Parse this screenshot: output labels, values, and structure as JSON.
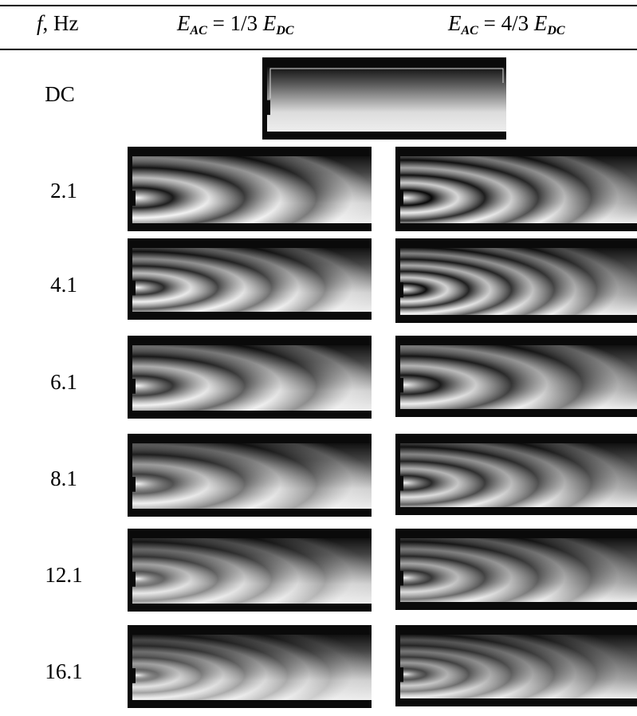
{
  "header": {
    "col_f": {
      "var": "f",
      "sep": ",",
      "unit": "Hz"
    },
    "col_left": {
      "E": "E",
      "sub_ac": "AC",
      "eq": " = 1/3 ",
      "E2": "E",
      "sub_dc": "DC"
    },
    "col_right": {
      "E": "E",
      "sub_ac": "AC",
      "eq": " = 4/3 ",
      "E2": "E",
      "sub_dc": "DC"
    }
  },
  "rows": [
    {
      "label": "DC"
    },
    {
      "label": "2.1",
      "rings_left": 3,
      "rings_right": 4
    },
    {
      "label": "4.1",
      "rings_left": 4,
      "rings_right": 5
    },
    {
      "label": "6.1",
      "rings_left": 3,
      "rings_right": 3
    },
    {
      "label": "8.1",
      "rings_left": 3,
      "rings_right": 4
    },
    {
      "label": "12.1",
      "rings_left": 4,
      "rings_right": 4
    },
    {
      "label": "16.1",
      "rings_left": 5,
      "rings_right": 5
    }
  ]
}
